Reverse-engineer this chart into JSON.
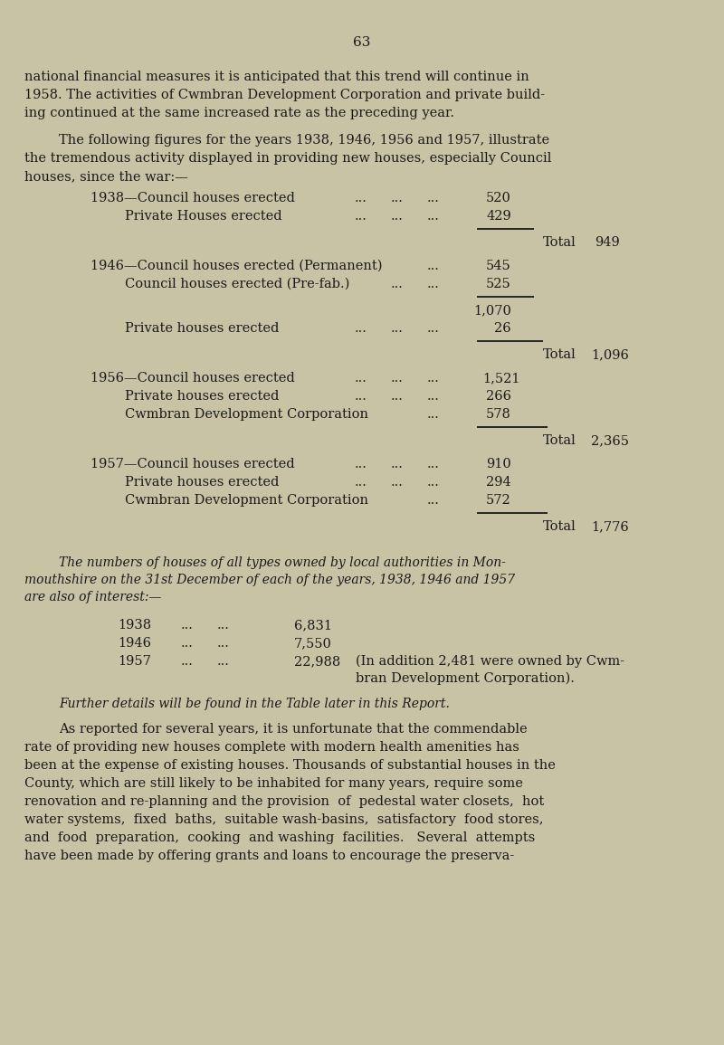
{
  "bg_color": "#c8c3a5",
  "text_color": "#1a1a1a",
  "page_number": "63",
  "para1_lines": [
    "national financial measures it is anticipated that this trend will continue in",
    "1958. The activities of Cwmbran Development Corporation and private build-",
    "ing continued at the same increased rate as the preceding year."
  ],
  "para2_lines": [
    "The following figures for the years 1938, 1946, 1956 and 1957, illustrate",
    "the tremendous activity displayed in providing new houses, especially Council",
    "houses, since the war:—"
  ],
  "para3_lines": [
    "The numbers of houses of all types owned by local authorities in Mon-",
    "mouthshire on the 31st December of each of the years, 1938, 1946 and 1957",
    "are also of interest:—"
  ],
  "para4": "Further details will be found in the Table later in this Report.",
  "para5_lines": [
    "As reported for several years, it is unfortunate that the commendable",
    "rate of providing new houses complete with modern health amenities has",
    "been at the expense of existing houses. Thousands of substantial houses in the",
    "County, which are still likely to be inhabited for many years, require some",
    "renovation and re-planning and the provision  of  pedestal water closets,  hot",
    "water systems,  fixed  baths,  suitable wash-basins,  satisfactory  food stores,",
    "and  food  preparation,  cooking  and washing  facilities.   Several  attempts",
    "have been made by offering grants and loans to encourage the preserva-"
  ]
}
